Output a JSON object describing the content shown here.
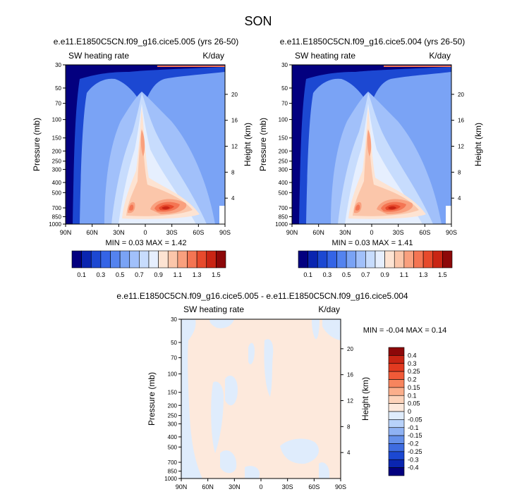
{
  "page_title": "SON",
  "chart_data": [
    {
      "type": "heatmap",
      "title": "e.e11.E1850C5CN.f09_g16.cice5.005 (yrs 26-50)",
      "left_subtitle": "SW heating rate",
      "right_subtitle": "K/day",
      "xlabel": "",
      "ylabel": "Pressure (mb)",
      "y2label": "Height (km)",
      "x_ticks": [
        "90N",
        "60N",
        "30N",
        "0",
        "30S",
        "60S",
        "90S"
      ],
      "y_ticks": [
        "30",
        "50",
        "70",
        "100",
        "150",
        "200",
        "250",
        "300",
        "400",
        "500",
        "700",
        "850",
        "1000"
      ],
      "y_tick_values": [
        30,
        50,
        70,
        100,
        150,
        200,
        250,
        300,
        400,
        500,
        700,
        850,
        1000
      ],
      "y_range": [
        1000,
        30
      ],
      "y_scale": "log",
      "y2_ticks": [
        "4",
        "8",
        "12",
        "16",
        "20"
      ],
      "y2_tick_values": [
        4,
        8,
        12,
        16,
        20
      ],
      "stats": "MIN =  0.03  MAX =  1.42",
      "colorbar": {
        "orientation": "horizontal",
        "labels": [
          "0.1",
          "0.3",
          "0.5",
          "0.7",
          "0.9",
          "1.1",
          "1.3",
          "1.5"
        ],
        "levels": [
          0.1,
          0.2,
          0.3,
          0.4,
          0.5,
          0.6,
          0.7,
          0.8,
          0.9,
          1.0,
          1.1,
          1.2,
          1.3,
          1.4,
          1.5
        ],
        "colors": [
          "#03007f",
          "#0a25b0",
          "#1c48d2",
          "#3464e6",
          "#5483ef",
          "#7aa3f5",
          "#a1c0fa",
          "#c7dcfd",
          "#e6effe",
          "#fde3d2",
          "#fbc6aa",
          "#f9a07e",
          "#f47553",
          "#e74a2c",
          "#c92514",
          "#8d0809"
        ]
      }
    },
    {
      "type": "heatmap",
      "title": "e.e11.E1850C5CN.f09_g16.cice5.004 (yrs 26-50)",
      "left_subtitle": "SW heating rate",
      "right_subtitle": "K/day",
      "xlabel": "",
      "ylabel": "Pressure (mb)",
      "y2label": "Height (km)",
      "x_ticks": [
        "90N",
        "60N",
        "30N",
        "0",
        "30S",
        "60S",
        "90S"
      ],
      "y_ticks": [
        "30",
        "50",
        "70",
        "100",
        "150",
        "200",
        "250",
        "300",
        "400",
        "500",
        "700",
        "850",
        "1000"
      ],
      "y_tick_values": [
        30,
        50,
        70,
        100,
        150,
        200,
        250,
        300,
        400,
        500,
        700,
        850,
        1000
      ],
      "y_range": [
        1000,
        30
      ],
      "y_scale": "log",
      "y2_ticks": [
        "4",
        "8",
        "12",
        "16",
        "20"
      ],
      "y2_tick_values": [
        4,
        8,
        12,
        16,
        20
      ],
      "stats": "MIN =  0.03  MAX =  1.41",
      "colorbar": {
        "orientation": "horizontal",
        "labels": [
          "0.1",
          "0.3",
          "0.5",
          "0.7",
          "0.9",
          "1.1",
          "1.3",
          "1.5"
        ],
        "levels": [
          0.1,
          0.2,
          0.3,
          0.4,
          0.5,
          0.6,
          0.7,
          0.8,
          0.9,
          1.0,
          1.1,
          1.2,
          1.3,
          1.4,
          1.5
        ],
        "colors": [
          "#03007f",
          "#0a25b0",
          "#1c48d2",
          "#3464e6",
          "#5483ef",
          "#7aa3f5",
          "#a1c0fa",
          "#c7dcfd",
          "#e6effe",
          "#fde3d2",
          "#fbc6aa",
          "#f9a07e",
          "#f47553",
          "#e74a2c",
          "#c92514",
          "#8d0809"
        ]
      }
    },
    {
      "type": "heatmap",
      "title": "e.e11.E1850C5CN.f09_g16.cice5.005 - e.e11.E1850C5CN.f09_g16.cice5.004",
      "left_subtitle": "SW heating rate",
      "right_subtitle": "K/day",
      "xlabel": "",
      "ylabel": "Pressure (mb)",
      "y2label": "Height (km)",
      "x_ticks": [
        "90N",
        "60N",
        "30N",
        "0",
        "30S",
        "60S",
        "90S"
      ],
      "y_ticks": [
        "30",
        "50",
        "70",
        "100",
        "150",
        "200",
        "250",
        "300",
        "400",
        "500",
        "700",
        "850",
        "1000"
      ],
      "y_tick_values": [
        30,
        50,
        70,
        100,
        150,
        200,
        250,
        300,
        400,
        500,
        700,
        850,
        1000
      ],
      "y_range": [
        1000,
        30
      ],
      "y_scale": "log",
      "y2_ticks": [
        "4",
        "8",
        "12",
        "16",
        "20"
      ],
      "y2_tick_values": [
        4,
        8,
        12,
        16,
        20
      ],
      "stats": "MIN = -0.04  MAX =  0.14",
      "colorbar": {
        "orientation": "vertical",
        "labels": [
          "0.4",
          "0.3",
          "0.25",
          "0.2",
          "0.15",
          "0.1",
          "0.05",
          "0",
          "-0.05",
          "-0.1",
          "-0.15",
          "-0.2",
          "-0.25",
          "-0.3",
          "-0.4"
        ],
        "colors": [
          "#8d0809",
          "#c92514",
          "#e23a20",
          "#f05a38",
          "#f7855e",
          "#fbae8b",
          "#fdd3ba",
          "#fde9dc",
          "#dfecfc",
          "#b8d2fa",
          "#8fb2f3",
          "#6590ea",
          "#3e6ce0",
          "#1c48d2",
          "#0a25b0",
          "#03007f"
        ]
      }
    }
  ]
}
